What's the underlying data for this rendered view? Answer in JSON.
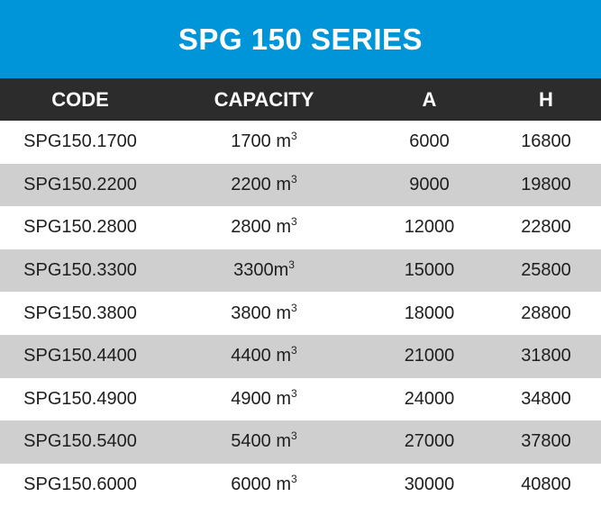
{
  "title": "SPG 150 SERIES",
  "columns": [
    "CODE",
    "CAPACITY",
    "A",
    "H"
  ],
  "rows": [
    {
      "code": "SPG150.1700",
      "capacity": "1700 m",
      "sup": "3",
      "a": "6000",
      "h": "16800"
    },
    {
      "code": "SPG150.2200",
      "capacity": "2200 m",
      "sup": "3",
      "a": "9000",
      "h": "19800"
    },
    {
      "code": "SPG150.2800",
      "capacity": "2800 m",
      "sup": "3",
      "a": "12000",
      "h": "22800"
    },
    {
      "code": "SPG150.3300",
      "capacity": "3300m",
      "sup": "3",
      "a": "15000",
      "h": "25800"
    },
    {
      "code": "SPG150.3800",
      "capacity": "3800 m",
      "sup": "3",
      "a": "18000",
      "h": "28800"
    },
    {
      "code": "SPG150.4400",
      "capacity": "4400 m",
      "sup": "3",
      "a": "21000",
      "h": "31800"
    },
    {
      "code": "SPG150.4900",
      "capacity": "4900 m",
      "sup": "3",
      "a": "24000",
      "h": "34800"
    },
    {
      "code": "SPG150.5400",
      "capacity": "5400 m",
      "sup": "3",
      "a": "27000",
      "h": "37800"
    },
    {
      "code": "SPG150.6000",
      "capacity": "6000 m",
      "sup": "3",
      "a": "30000",
      "h": "40800"
    }
  ],
  "colors": {
    "title_bg": "#0095d8",
    "header_bg": "#2c2c2c",
    "stripe_bg": "#cfcfcf"
  }
}
